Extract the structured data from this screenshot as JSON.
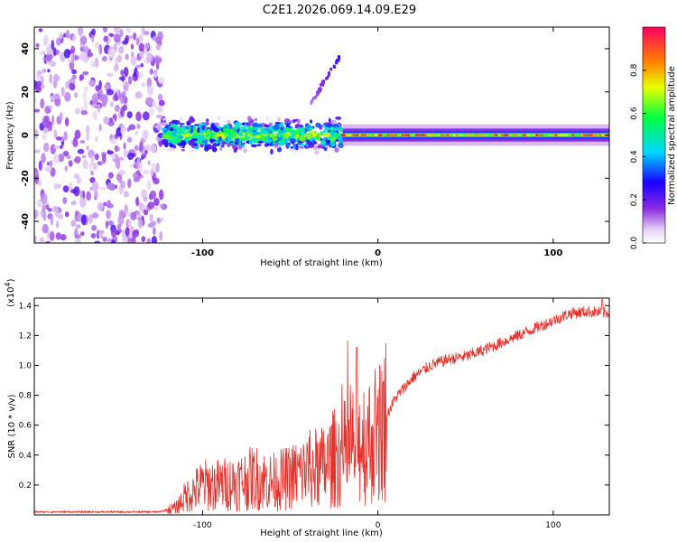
{
  "title": "C2E1.2026.069.14.09.E29",
  "chart_data": [
    {
      "type": "heatmap",
      "name": "spectrogram",
      "xlabel": "Height of straight line (km)",
      "ylabel": "Frequency (Hz)",
      "xlim": [
        -196,
        132
      ],
      "ylim": [
        -50,
        50
      ],
      "x_ticks": [
        -100,
        0,
        100
      ],
      "y_ticks": [
        -40,
        -20,
        0,
        20,
        40
      ],
      "grid": false,
      "colorbar": {
        "label": "Normalized spectral amplitude",
        "range": [
          0.0,
          1.0
        ],
        "ticks": [
          0.0,
          0.2,
          0.4,
          0.6,
          0.8
        ]
      },
      "regions": [
        {
          "x_range": [
            -196,
            -122
          ],
          "description_level": "scattered weak noise",
          "amplitude": 0.15
        },
        {
          "x_range": [
            -122,
            -20
          ],
          "center_freq": 0,
          "spread": 8,
          "amplitude": 0.55
        },
        {
          "x_range": [
            -20,
            132
          ],
          "center_freq": 0,
          "spread": 2,
          "amplitude": 0.8
        }
      ],
      "feature_line": {
        "x": [
          -38,
          -22
        ],
        "y": [
          15,
          36
        ]
      }
    },
    {
      "type": "line",
      "name": "snr",
      "xlabel": "Height of straight line (km)",
      "ylabel": "SNR (10 * v/v)",
      "scale_label": "(x10",
      "scale_exponent": "4",
      "scale_suffix": ")",
      "xlim": [
        -196,
        132
      ],
      "ylim": [
        0,
        1.45
      ],
      "x_ticks": [
        -100,
        0,
        100
      ],
      "y_ticks": [
        0.2,
        0.4,
        0.6,
        0.8,
        1.0,
        1.2,
        1.4
      ],
      "grid": false,
      "color": "#e8302a",
      "series": [
        {
          "name": "SNR",
          "x": [
            -196,
            -150,
            -125,
            -115,
            -110,
            -100,
            -90,
            -80,
            -70,
            -60,
            -50,
            -40,
            -30,
            -25,
            -20,
            -15,
            -10,
            -5,
            0,
            10,
            20,
            30,
            40,
            50,
            60,
            70,
            80,
            90,
            100,
            110,
            120,
            132
          ],
          "y": [
            0.02,
            0.02,
            0.02,
            0.05,
            0.12,
            0.2,
            0.2,
            0.22,
            0.25,
            0.22,
            0.25,
            0.3,
            0.32,
            0.38,
            0.4,
            0.45,
            0.5,
            0.5,
            0.55,
            0.78,
            0.92,
            1.0,
            1.04,
            1.06,
            1.1,
            1.15,
            1.2,
            1.25,
            1.3,
            1.35,
            1.36,
            1.35
          ]
        }
      ]
    }
  ]
}
